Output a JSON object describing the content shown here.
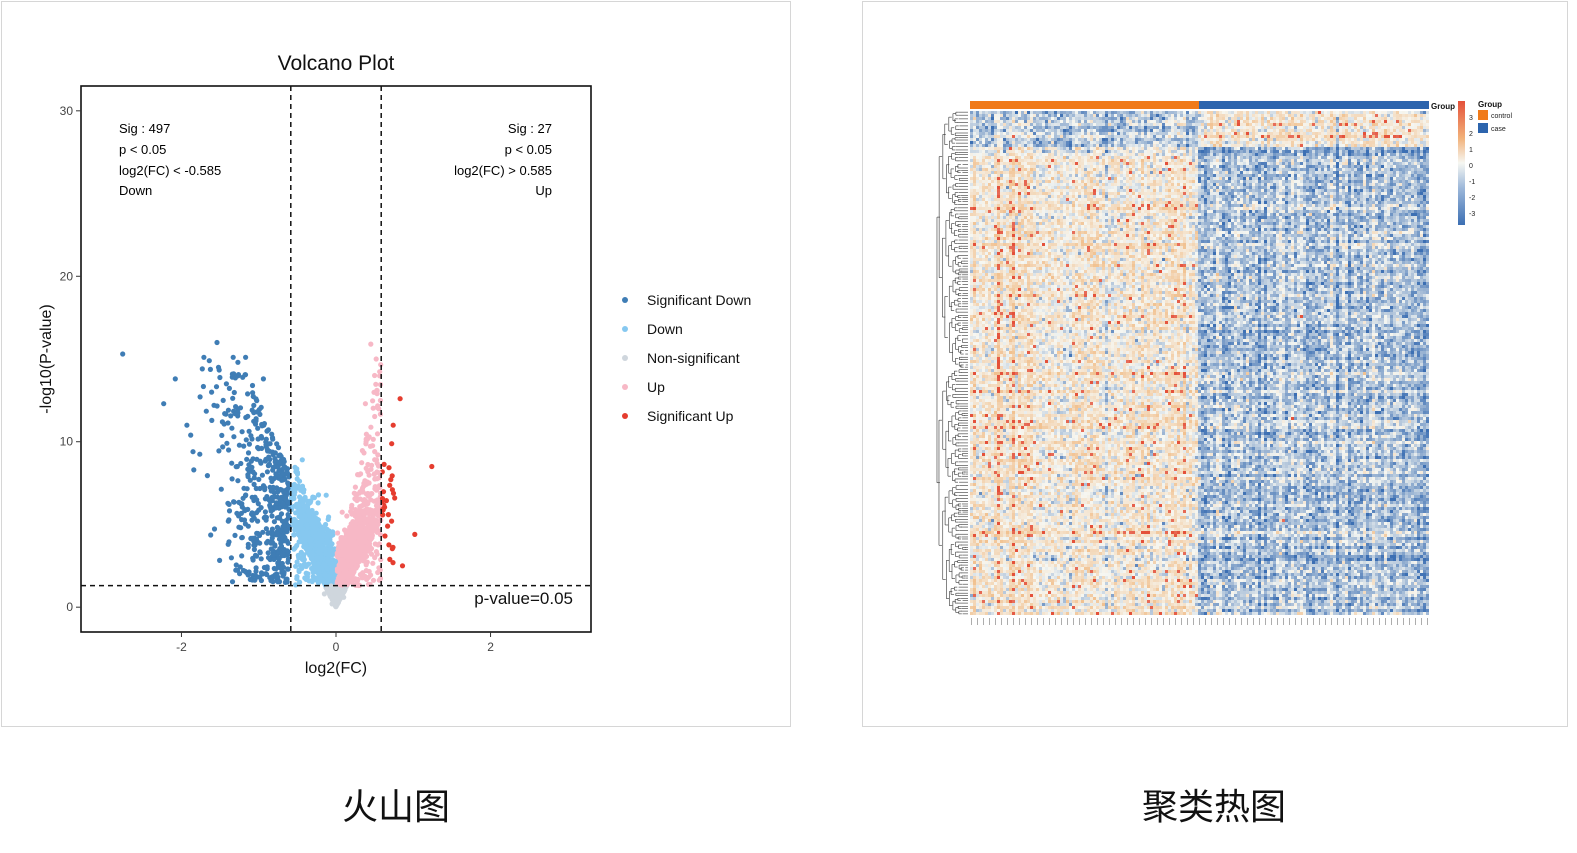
{
  "captions": {
    "left": "火山图",
    "right": "聚类热图"
  },
  "colors": {
    "sig_down": "#3f7db5",
    "down": "#86c8f0",
    "non_sig": "#cfd6dd",
    "up": "#f7b8c6",
    "sig_up": "#e53d2f",
    "control": "#f07a1a",
    "case": "#2c64ad"
  },
  "chart_data": [
    {
      "type": "scatter",
      "title": "Volcano Plot",
      "xlabel": "log2(FC)",
      "ylabel": "-log10(P-value)",
      "xlim": [
        -3.3,
        3.3
      ],
      "ylim": [
        -1.5,
        31.5
      ],
      "x_ticks": [
        -2,
        0,
        2
      ],
      "y_ticks": [
        0,
        10,
        20,
        30
      ],
      "grid": false,
      "legend_position": "right",
      "thresholds": {
        "fc": 0.585,
        "pvalue_line_y": 1.301
      },
      "threshold_label": "p-value=0.05",
      "annotations": {
        "left": [
          "Sig : 497",
          "p < 0.05",
          "log2(FC) < -0.585",
          "Down"
        ],
        "right": [
          "Sig : 27",
          "p < 0.05",
          "log2(FC) > 0.585",
          "Up"
        ]
      },
      "series": [
        {
          "name": "Significant Down",
          "color": "#3f7db5",
          "points": [
            [
              -2.76,
              15.3
            ],
            [
              -2.23,
              12.3
            ],
            [
              -2.08,
              13.8
            ],
            [
              -1.93,
              11.0
            ],
            [
              -1.88,
              10.4
            ],
            [
              -1.85,
              9.4
            ],
            [
              -1.84,
              8.3
            ],
            [
              -1.73,
              14.4
            ],
            [
              -1.71,
              15.1
            ],
            [
              -1.64,
              14.9
            ],
            [
              -1.61,
              13.0
            ],
            [
              -1.54,
              16.0
            ],
            [
              -1.52,
              14.5
            ],
            [
              -1.46,
              12.5
            ],
            [
              -1.47,
              11.2
            ],
            [
              -1.39,
              9.5
            ],
            [
              -1.33,
              15.1
            ],
            [
              -1.27,
              14.8
            ],
            [
              -1.17,
              15.1
            ],
            [
              -1.08,
              13.4
            ],
            [
              -0.94,
              13.8
            ],
            [
              -1.22,
              4.2
            ],
            [
              -1.22,
              3.1
            ],
            [
              -0.62,
              2.3
            ],
            [
              -0.63,
              3.4
            ],
            [
              -0.75,
              1.8
            ]
          ]
        },
        {
          "name": "Down",
          "color": "#86c8f0",
          "points": [
            [
              -0.57,
              7.0
            ],
            [
              -0.54,
              6.8
            ],
            [
              -0.46,
              5.8
            ],
            [
              -0.35,
              5.3
            ]
          ]
        },
        {
          "name": "Non-significant",
          "color": "#cfd6dd",
          "points": [
            [
              -0.05,
              0.2
            ],
            [
              0.02,
              0.35
            ],
            [
              0.1,
              0.6
            ],
            [
              -0.15,
              0.8
            ]
          ]
        },
        {
          "name": "Up",
          "color": "#f7b8c6",
          "points": [
            [
              0.45,
              15.9
            ],
            [
              0.52,
              15.0
            ],
            [
              0.5,
              14.0
            ],
            [
              0.38,
              12.3
            ],
            [
              0.3,
              8.0
            ]
          ]
        },
        {
          "name": "Significant Up",
          "color": "#e53d2f",
          "points": [
            [
              0.83,
              12.6
            ],
            [
              1.24,
              8.5
            ],
            [
              1.02,
              4.4
            ],
            [
              0.86,
              2.5
            ],
            [
              0.74,
              11.0
            ],
            [
              0.73,
              7.1
            ],
            [
              0.76,
              6.6
            ],
            [
              0.72,
              5.2
            ]
          ]
        }
      ]
    },
    {
      "type": "heatmap",
      "column_annotation": "Group",
      "legend_title": "Group",
      "groups": [
        {
          "name": "control",
          "color": "#f07a1a"
        },
        {
          "name": "case",
          "color": "#2c64ad"
        }
      ],
      "color_scale": {
        "min": -3,
        "max": 3,
        "ticks": [
          "3",
          "2",
          "1",
          "0",
          "-1",
          "-2",
          "-3"
        ],
        "low": "#3c6fb3",
        "mid": "#f6f7f2",
        "high": "#e4513a"
      },
      "clustering": "rows",
      "pattern": {
        "control": "higher values (orange)",
        "case": "lower values (blue)"
      }
    }
  ]
}
